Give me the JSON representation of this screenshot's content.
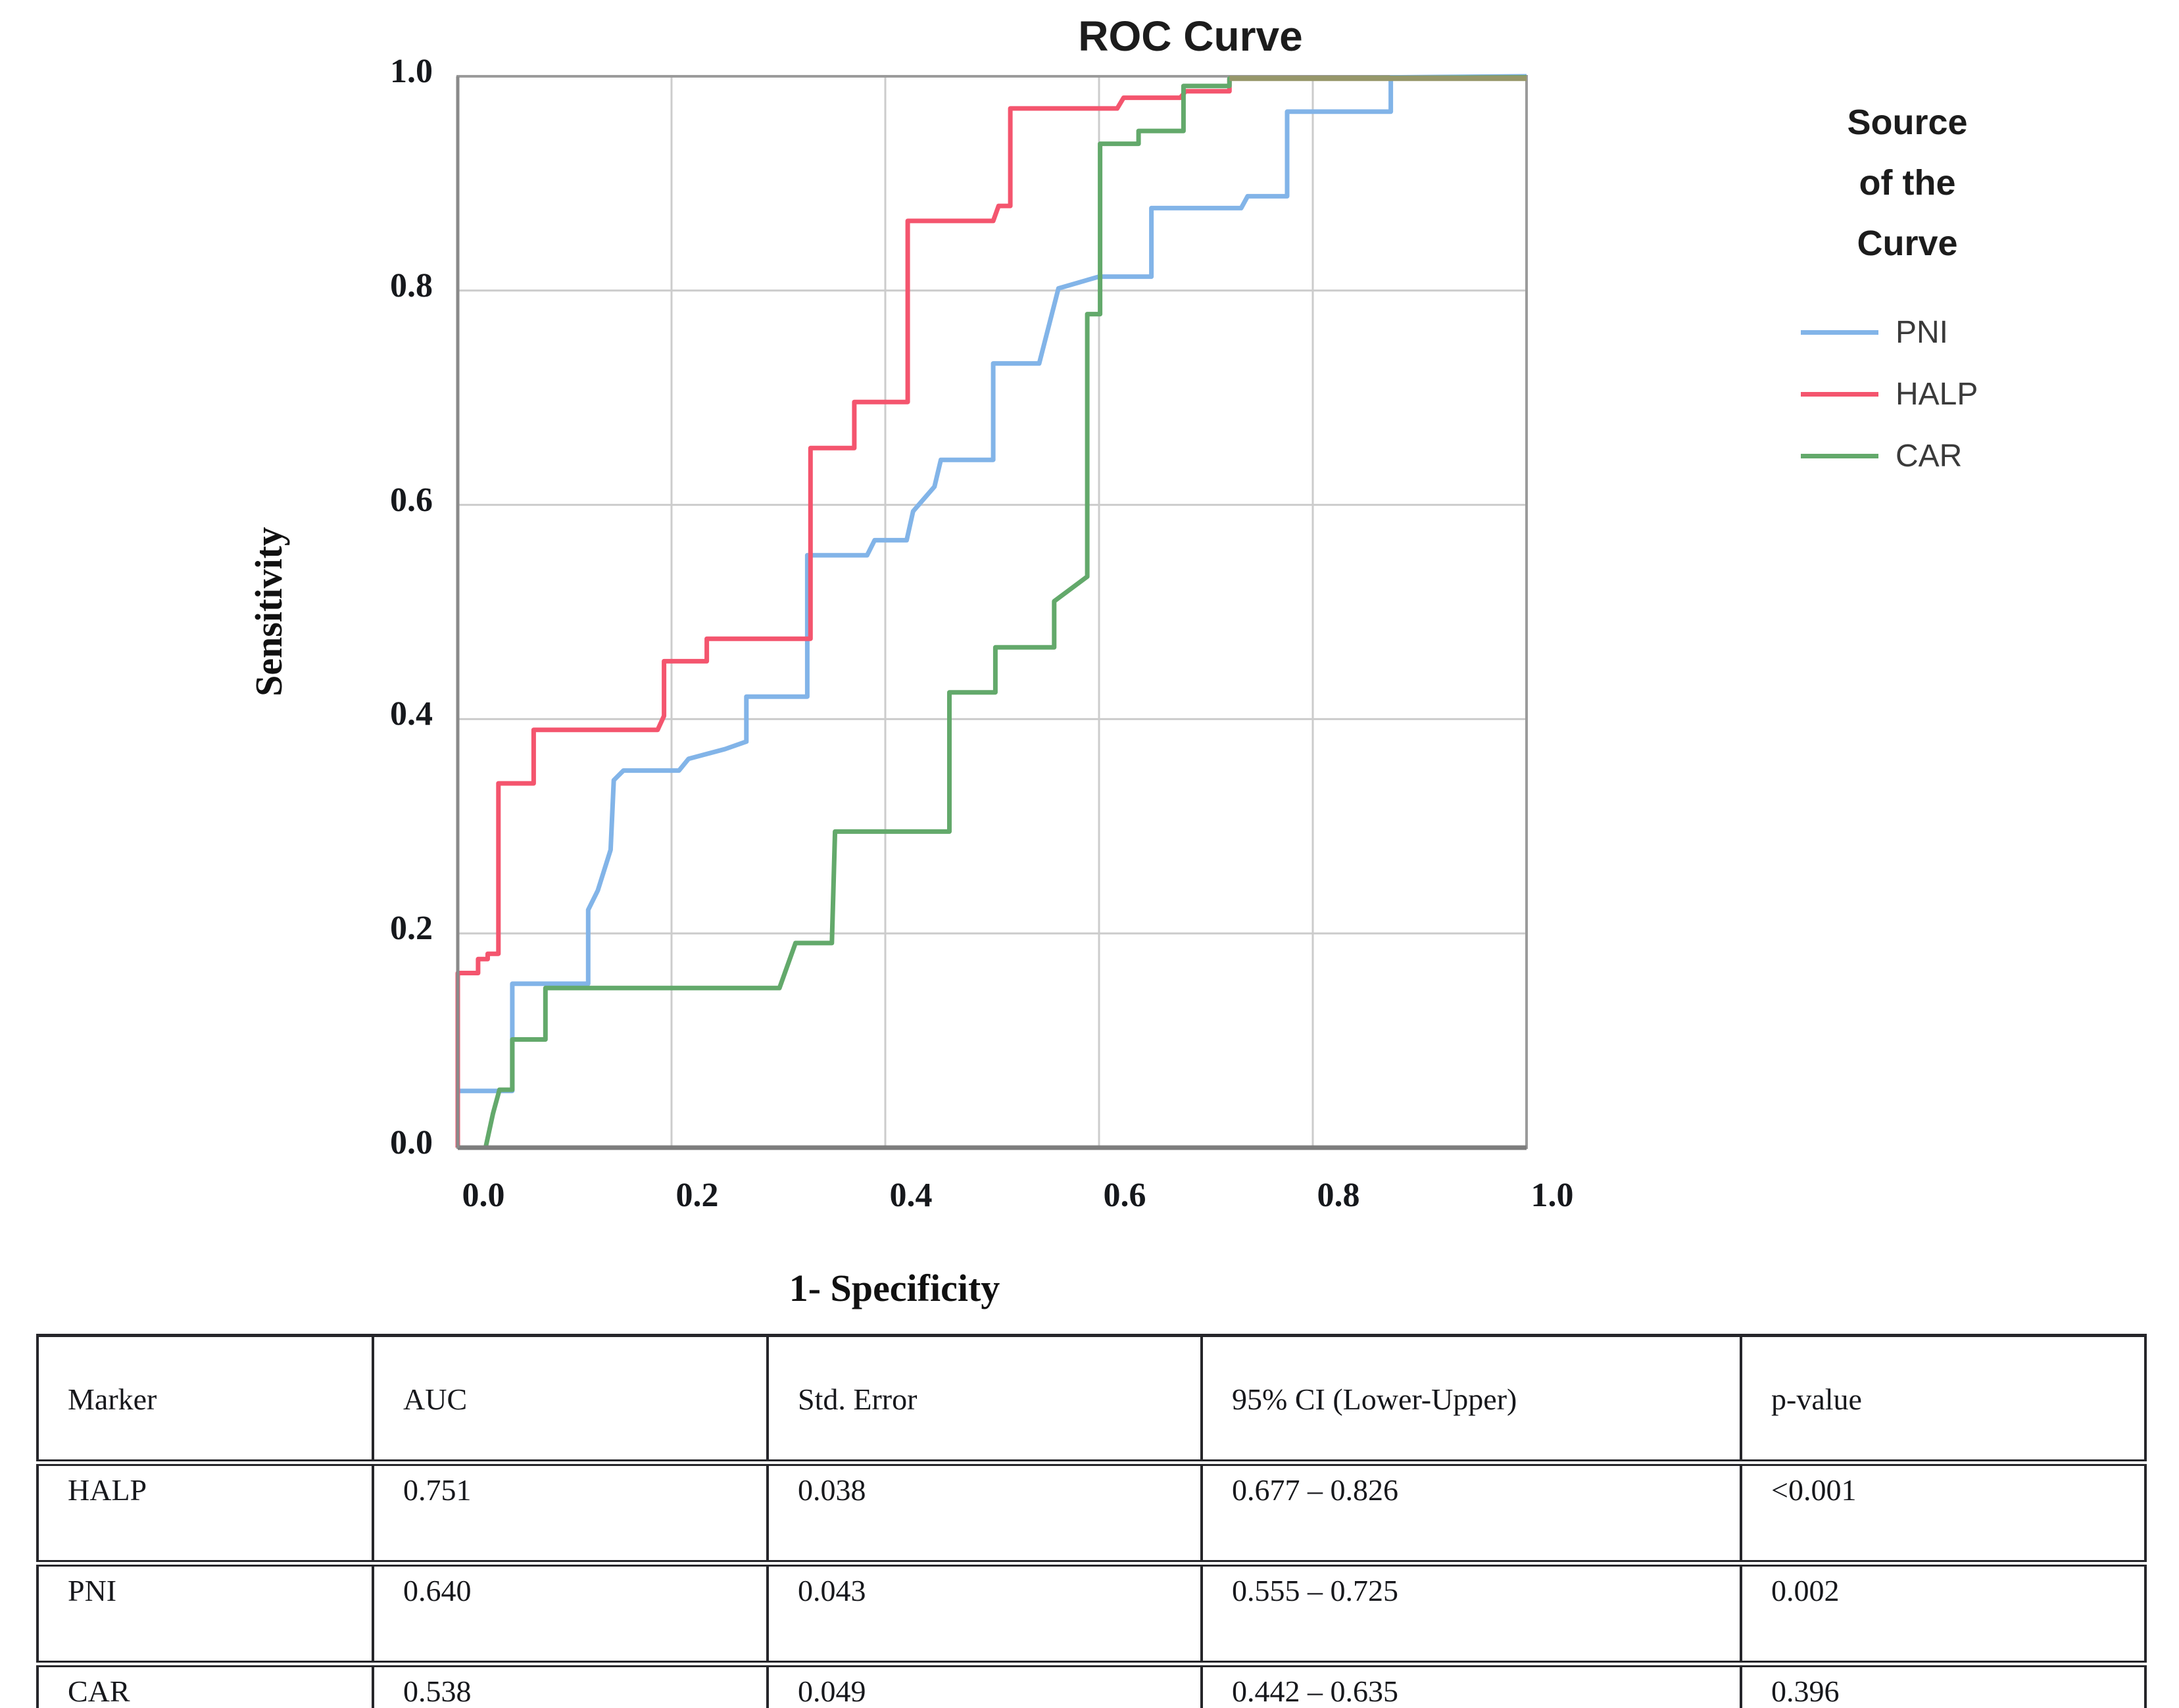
{
  "page_title": "ROC Curve",
  "chart": {
    "title": "ROC Curve",
    "y_axis": {
      "label": "Sensitivity",
      "ticks_top_to_bottom": [
        "1.0",
        "0.8",
        "0.6",
        "0.4",
        "0.2",
        "0.0"
      ]
    },
    "x_axis": {
      "label": "1- Specificity",
      "ticks_left_to_right": [
        "0.0",
        "0.2",
        "0.4",
        "0.6",
        "0.8",
        "1.0"
      ]
    },
    "legend": {
      "title_lines": [
        "Source",
        "of the",
        "Curve"
      ],
      "items": [
        {
          "label": "PNI",
          "color": "#82b4e8"
        },
        {
          "label": "HALP",
          "color": "#f4556e"
        },
        {
          "label": "CAR",
          "color": "#63a96b"
        }
      ]
    },
    "colors": {
      "grid": "#cccccc",
      "frame": "#9b9b9b",
      "axis_dark": "#7d7d7d",
      "overlap": "#97976a"
    }
  },
  "chart_data": {
    "type": "line",
    "step": true,
    "title": "ROC Curve",
    "xlabel": "1- Specificity",
    "ylabel": "Sensitivity",
    "xlim": [
      0,
      1
    ],
    "ylim": [
      0,
      1
    ],
    "x_ticks": [
      0.0,
      0.2,
      0.4,
      0.6,
      0.8,
      1.0
    ],
    "y_ticks": [
      0.0,
      0.2,
      0.4,
      0.6,
      0.8,
      1.0
    ],
    "grid": true,
    "legend_position": "right",
    "series": [
      {
        "name": "PNI",
        "color": "#82b4e8",
        "points": [
          [
            0,
            0
          ],
          [
            0,
            0.053
          ],
          [
            0.051,
            0.053
          ],
          [
            0.051,
            0.153
          ],
          [
            0.122,
            0.153
          ],
          [
            0.122,
            0.222
          ],
          [
            0.131,
            0.24
          ],
          [
            0.143,
            0.278
          ],
          [
            0.146,
            0.343
          ],
          [
            0.155,
            0.352
          ],
          [
            0.207,
            0.352
          ],
          [
            0.216,
            0.363
          ],
          [
            0.25,
            0.372
          ],
          [
            0.27,
            0.379
          ],
          [
            0.27,
            0.421
          ],
          [
            0.327,
            0.421
          ],
          [
            0.327,
            0.553
          ],
          [
            0.383,
            0.553
          ],
          [
            0.39,
            0.567
          ],
          [
            0.42,
            0.567
          ],
          [
            0.426,
            0.594
          ],
          [
            0.446,
            0.617
          ],
          [
            0.452,
            0.642
          ],
          [
            0.501,
            0.642
          ],
          [
            0.501,
            0.732
          ],
          [
            0.544,
            0.732
          ],
          [
            0.562,
            0.802
          ],
          [
            0.6,
            0.813
          ],
          [
            0.649,
            0.813
          ],
          [
            0.649,
            0.877
          ],
          [
            0.733,
            0.877
          ],
          [
            0.739,
            0.888
          ],
          [
            0.776,
            0.888
          ],
          [
            0.776,
            0.967
          ],
          [
            0.873,
            0.967
          ],
          [
            0.873,
            0.999
          ],
          [
            1,
            1
          ]
        ]
      },
      {
        "name": "HALP",
        "color": "#f4556e",
        "points": [
          [
            0,
            0
          ],
          [
            0,
            0.163
          ],
          [
            0.019,
            0.163
          ],
          [
            0.019,
            0.176
          ],
          [
            0.028,
            0.176
          ],
          [
            0.028,
            0.181
          ],
          [
            0.038,
            0.181
          ],
          [
            0.038,
            0.34
          ],
          [
            0.071,
            0.34
          ],
          [
            0.071,
            0.39
          ],
          [
            0.187,
            0.39
          ],
          [
            0.193,
            0.403
          ],
          [
            0.193,
            0.454
          ],
          [
            0.233,
            0.454
          ],
          [
            0.233,
            0.475
          ],
          [
            0.33,
            0.475
          ],
          [
            0.33,
            0.653
          ],
          [
            0.371,
            0.653
          ],
          [
            0.371,
            0.696
          ],
          [
            0.421,
            0.696
          ],
          [
            0.421,
            0.865
          ],
          [
            0.501,
            0.865
          ],
          [
            0.506,
            0.879
          ],
          [
            0.517,
            0.879
          ],
          [
            0.517,
            0.97
          ],
          [
            0.617,
            0.97
          ],
          [
            0.623,
            0.98
          ],
          [
            0.676,
            0.98
          ],
          [
            0.681,
            0.986
          ],
          [
            0.722,
            0.986
          ],
          [
            0.722,
            0.998
          ],
          [
            1,
            0.999
          ]
        ]
      },
      {
        "name": "CAR",
        "color": "#63a96b",
        "points": [
          [
            0,
            0
          ],
          [
            0.026,
            0
          ],
          [
            0.033,
            0.032
          ],
          [
            0.039,
            0.054
          ],
          [
            0.051,
            0.054
          ],
          [
            0.051,
            0.101
          ],
          [
            0.082,
            0.101
          ],
          [
            0.082,
            0.149
          ],
          [
            0.301,
            0.149
          ],
          [
            0.316,
            0.191
          ],
          [
            0.35,
            0.191
          ],
          [
            0.353,
            0.295
          ],
          [
            0.46,
            0.295
          ],
          [
            0.46,
            0.425
          ],
          [
            0.503,
            0.425
          ],
          [
            0.503,
            0.467
          ],
          [
            0.558,
            0.467
          ],
          [
            0.558,
            0.51
          ],
          [
            0.589,
            0.533
          ],
          [
            0.589,
            0.778
          ],
          [
            0.601,
            0.778
          ],
          [
            0.601,
            0.937
          ],
          [
            0.637,
            0.937
          ],
          [
            0.637,
            0.949
          ],
          [
            0.679,
            0.949
          ],
          [
            0.679,
            0.991
          ],
          [
            0.722,
            0.991
          ],
          [
            0.722,
            0.998
          ],
          [
            1,
            0.999
          ]
        ]
      }
    ],
    "overlap_segment": {
      "color": "#97976a",
      "points": [
        [
          0.722,
          0.998
        ],
        [
          1,
          0.998
        ]
      ]
    }
  },
  "table": {
    "columns": [
      "Marker",
      "AUC",
      "Std. Error",
      "95% CI (Lower-Upper)",
      "p-value"
    ],
    "rows": [
      {
        "marker": "HALP",
        "auc": "0.751",
        "std_error": "0.038",
        "ci": "0.677 – 0.826",
        "p": "<0.001"
      },
      {
        "marker": "PNI",
        "auc": "0.640",
        "std_error": "0.043",
        "ci": "0.555 – 0.725",
        "p": "0.002"
      },
      {
        "marker": "CAR",
        "auc": "0.538",
        "std_error": "0.049",
        "ci": "0.442 – 0.635",
        "p": "0.396"
      }
    ]
  }
}
